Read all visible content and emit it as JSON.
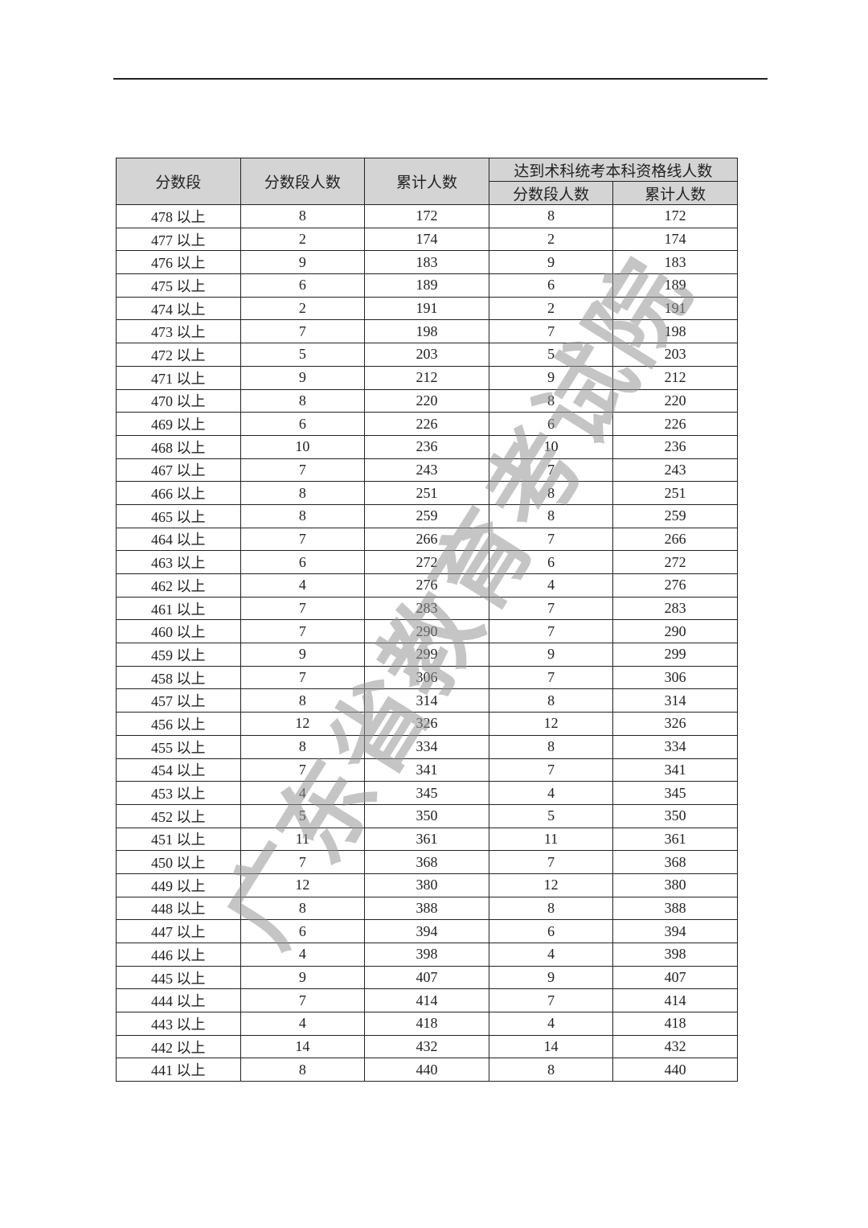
{
  "watermark": "广东省教育考试院",
  "table": {
    "headers": {
      "score": "分数段",
      "count": "分数段人数",
      "cumulative": "累计人数",
      "qualified_group": "达到术科统考本科资格线人数",
      "q_count": "分数段人数",
      "q_cumulative": "累计人数"
    },
    "rows": [
      [
        "478 以上",
        "8",
        "172",
        "8",
        "172"
      ],
      [
        "477 以上",
        "2",
        "174",
        "2",
        "174"
      ],
      [
        "476 以上",
        "9",
        "183",
        "9",
        "183"
      ],
      [
        "475 以上",
        "6",
        "189",
        "6",
        "189"
      ],
      [
        "474 以上",
        "2",
        "191",
        "2",
        "191"
      ],
      [
        "473 以上",
        "7",
        "198",
        "7",
        "198"
      ],
      [
        "472 以上",
        "5",
        "203",
        "5",
        "203"
      ],
      [
        "471 以上",
        "9",
        "212",
        "9",
        "212"
      ],
      [
        "470 以上",
        "8",
        "220",
        "8",
        "220"
      ],
      [
        "469 以上",
        "6",
        "226",
        "6",
        "226"
      ],
      [
        "468 以上",
        "10",
        "236",
        "10",
        "236"
      ],
      [
        "467 以上",
        "7",
        "243",
        "7",
        "243"
      ],
      [
        "466 以上",
        "8",
        "251",
        "8",
        "251"
      ],
      [
        "465 以上",
        "8",
        "259",
        "8",
        "259"
      ],
      [
        "464 以上",
        "7",
        "266",
        "7",
        "266"
      ],
      [
        "463 以上",
        "6",
        "272",
        "6",
        "272"
      ],
      [
        "462 以上",
        "4",
        "276",
        "4",
        "276"
      ],
      [
        "461 以上",
        "7",
        "283",
        "7",
        "283"
      ],
      [
        "460 以上",
        "7",
        "290",
        "7",
        "290"
      ],
      [
        "459 以上",
        "9",
        "299",
        "9",
        "299"
      ],
      [
        "458 以上",
        "7",
        "306",
        "7",
        "306"
      ],
      [
        "457 以上",
        "8",
        "314",
        "8",
        "314"
      ],
      [
        "456 以上",
        "12",
        "326",
        "12",
        "326"
      ],
      [
        "455 以上",
        "8",
        "334",
        "8",
        "334"
      ],
      [
        "454 以上",
        "7",
        "341",
        "7",
        "341"
      ],
      [
        "453 以上",
        "4",
        "345",
        "4",
        "345"
      ],
      [
        "452 以上",
        "5",
        "350",
        "5",
        "350"
      ],
      [
        "451 以上",
        "11",
        "361",
        "11",
        "361"
      ],
      [
        "450 以上",
        "7",
        "368",
        "7",
        "368"
      ],
      [
        "449 以上",
        "12",
        "380",
        "12",
        "380"
      ],
      [
        "448 以上",
        "8",
        "388",
        "8",
        "388"
      ],
      [
        "447 以上",
        "6",
        "394",
        "6",
        "394"
      ],
      [
        "446 以上",
        "4",
        "398",
        "4",
        "398"
      ],
      [
        "445 以上",
        "9",
        "407",
        "9",
        "407"
      ],
      [
        "444 以上",
        "7",
        "414",
        "7",
        "414"
      ],
      [
        "443 以上",
        "4",
        "418",
        "4",
        "418"
      ],
      [
        "442 以上",
        "14",
        "432",
        "14",
        "432"
      ],
      [
        "441 以上",
        "8",
        "440",
        "8",
        "440"
      ]
    ]
  }
}
